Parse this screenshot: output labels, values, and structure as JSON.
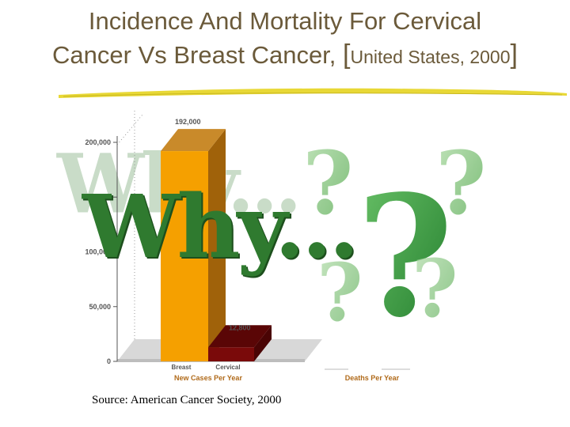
{
  "title": {
    "line1": "Incidence And Mortality  For Cervical",
    "line2_main": "Cancer Vs Breast Cancer, ",
    "line2_open": "[",
    "line2_small": "United States, 2000",
    "line2_close": "]"
  },
  "overlay_text": "Why...",
  "source": "Source: American Cancer Society, 2000",
  "colors": {
    "title": "#6b5a3a",
    "breast_bar": "#f5a000",
    "cervical_bar": "#7a0a0a",
    "axis_label": "#b06a1a",
    "why_text": "#2f7a2f",
    "question_marks": "#4caf50"
  },
  "icons": [
    "question-mark-icon"
  ],
  "chart_data": {
    "type": "bar",
    "style": "3d",
    "categories": [
      "Breast",
      "Cervical"
    ],
    "values": [
      192000,
      12800
    ],
    "data_labels": [
      "192,000",
      "12,800"
    ],
    "ylim": [
      0,
      200000
    ],
    "yticks": [
      0,
      50000,
      100000,
      150000,
      200000
    ],
    "ytick_labels": [
      "0",
      "50,000",
      "100,000",
      "150,000",
      "200,000"
    ],
    "group_labels": [
      "New Cases  Per Year",
      "Deaths Per Year"
    ],
    "grid": false,
    "legend": "none"
  }
}
